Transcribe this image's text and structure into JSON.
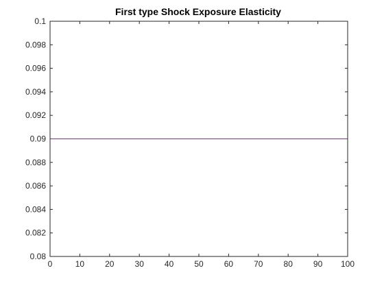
{
  "chart_data": {
    "type": "line",
    "title": "First type Shock Exposure Elasticity",
    "xlabel": "",
    "ylabel": "",
    "xlim": [
      0,
      100
    ],
    "ylim": [
      0.08,
      0.1
    ],
    "x_ticks": [
      "0",
      "10",
      "20",
      "30",
      "40",
      "50",
      "60",
      "70",
      "80",
      "90",
      "100"
    ],
    "y_ticks": [
      "0.08",
      "0.082",
      "0.084",
      "0.086",
      "0.088",
      "0.09",
      "0.092",
      "0.094",
      "0.096",
      "0.098",
      "0.1"
    ],
    "grid": false,
    "series": [
      {
        "x": [
          0,
          100
        ],
        "values": [
          0.09,
          0.09
        ],
        "color": "#7E2F8E"
      }
    ]
  }
}
